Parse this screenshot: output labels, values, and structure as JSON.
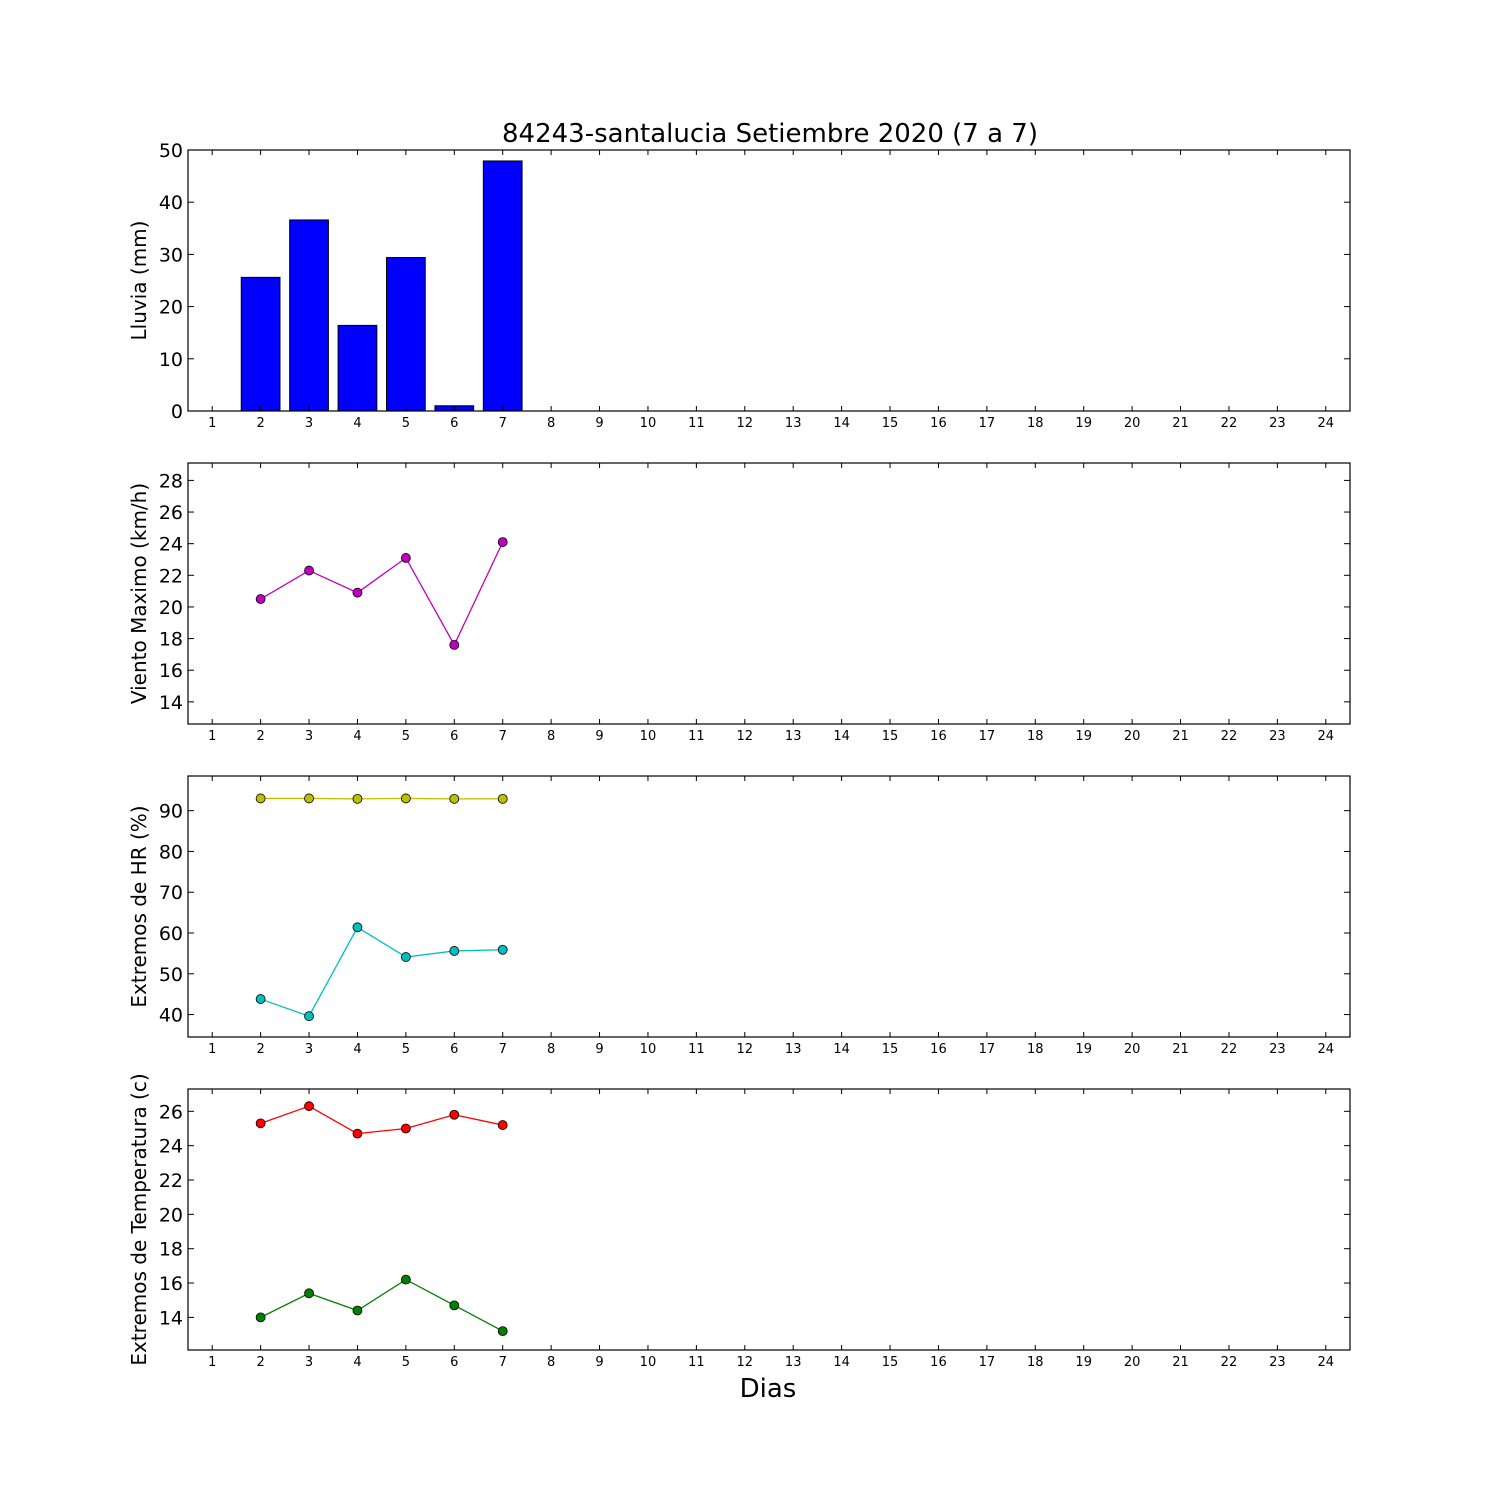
{
  "figure": {
    "title": "84243-santalucia Setiembre 2020  (7 a 7)",
    "xlabel": "Dias"
  },
  "chart_data": [
    {
      "type": "bar",
      "ylabel": "Lluvia (mm)",
      "x": [
        2,
        3,
        4,
        5,
        6,
        7
      ],
      "values": [
        25.6,
        36.6,
        16.4,
        29.4,
        1.0,
        47.9
      ],
      "color": "#0000ff",
      "xlim": [
        0.5,
        24.5
      ],
      "ylim": [
        0,
        50
      ],
      "xticks": [
        1,
        2,
        3,
        4,
        5,
        6,
        7,
        8,
        9,
        10,
        11,
        12,
        13,
        14,
        15,
        16,
        17,
        18,
        19,
        20,
        21,
        22,
        23,
        24
      ],
      "yticks": [
        0,
        10,
        20,
        30,
        40,
        50
      ],
      "grid": false
    },
    {
      "type": "line",
      "ylabel": "Viento Maximo (km/h)",
      "x": [
        2,
        3,
        4,
        5,
        6,
        7
      ],
      "series": [
        {
          "values": [
            20.5,
            22.3,
            20.9,
            23.1,
            17.6,
            24.1
          ],
          "color": "#bf00bf"
        }
      ],
      "xlim": [
        0.5,
        24.5
      ],
      "ylim": [
        12.6,
        29.1
      ],
      "xticks": [
        1,
        2,
        3,
        4,
        5,
        6,
        7,
        8,
        9,
        10,
        11,
        12,
        13,
        14,
        15,
        16,
        17,
        18,
        19,
        20,
        21,
        22,
        23,
        24
      ],
      "yticks": [
        14,
        16,
        18,
        20,
        22,
        24,
        26,
        28
      ],
      "grid": false
    },
    {
      "type": "line",
      "ylabel": "Extremos de HR (%)",
      "x": [
        2,
        3,
        4,
        5,
        6,
        7
      ],
      "series": [
        {
          "values": [
            93.0,
            93.0,
            92.9,
            93.0,
            92.9,
            92.9
          ],
          "color": "#bfbf00"
        },
        {
          "values": [
            43.8,
            39.6,
            61.4,
            54.1,
            55.6,
            55.9
          ],
          "color": "#00bfbf"
        }
      ],
      "xlim": [
        0.5,
        24.5
      ],
      "ylim": [
        34.5,
        98.5
      ],
      "xticks": [
        1,
        2,
        3,
        4,
        5,
        6,
        7,
        8,
        9,
        10,
        11,
        12,
        13,
        14,
        15,
        16,
        17,
        18,
        19,
        20,
        21,
        22,
        23,
        24
      ],
      "yticks": [
        40,
        50,
        60,
        70,
        80,
        90
      ],
      "grid": false
    },
    {
      "type": "line",
      "ylabel": "Extremos de Temperatura (c)",
      "x": [
        2,
        3,
        4,
        5,
        6,
        7
      ],
      "series": [
        {
          "values": [
            25.3,
            26.3,
            24.7,
            25.0,
            25.8,
            25.2
          ],
          "color": "#ff0000"
        },
        {
          "values": [
            14.0,
            15.4,
            14.4,
            16.2,
            14.7,
            13.2
          ],
          "color": "#008000"
        }
      ],
      "xlim": [
        0.5,
        24.5
      ],
      "ylim": [
        12.1,
        27.3
      ],
      "xticks": [
        1,
        2,
        3,
        4,
        5,
        6,
        7,
        8,
        9,
        10,
        11,
        12,
        13,
        14,
        15,
        16,
        17,
        18,
        19,
        20,
        21,
        22,
        23,
        24
      ],
      "yticks": [
        14,
        16,
        18,
        20,
        22,
        24,
        26
      ],
      "grid": false
    }
  ]
}
